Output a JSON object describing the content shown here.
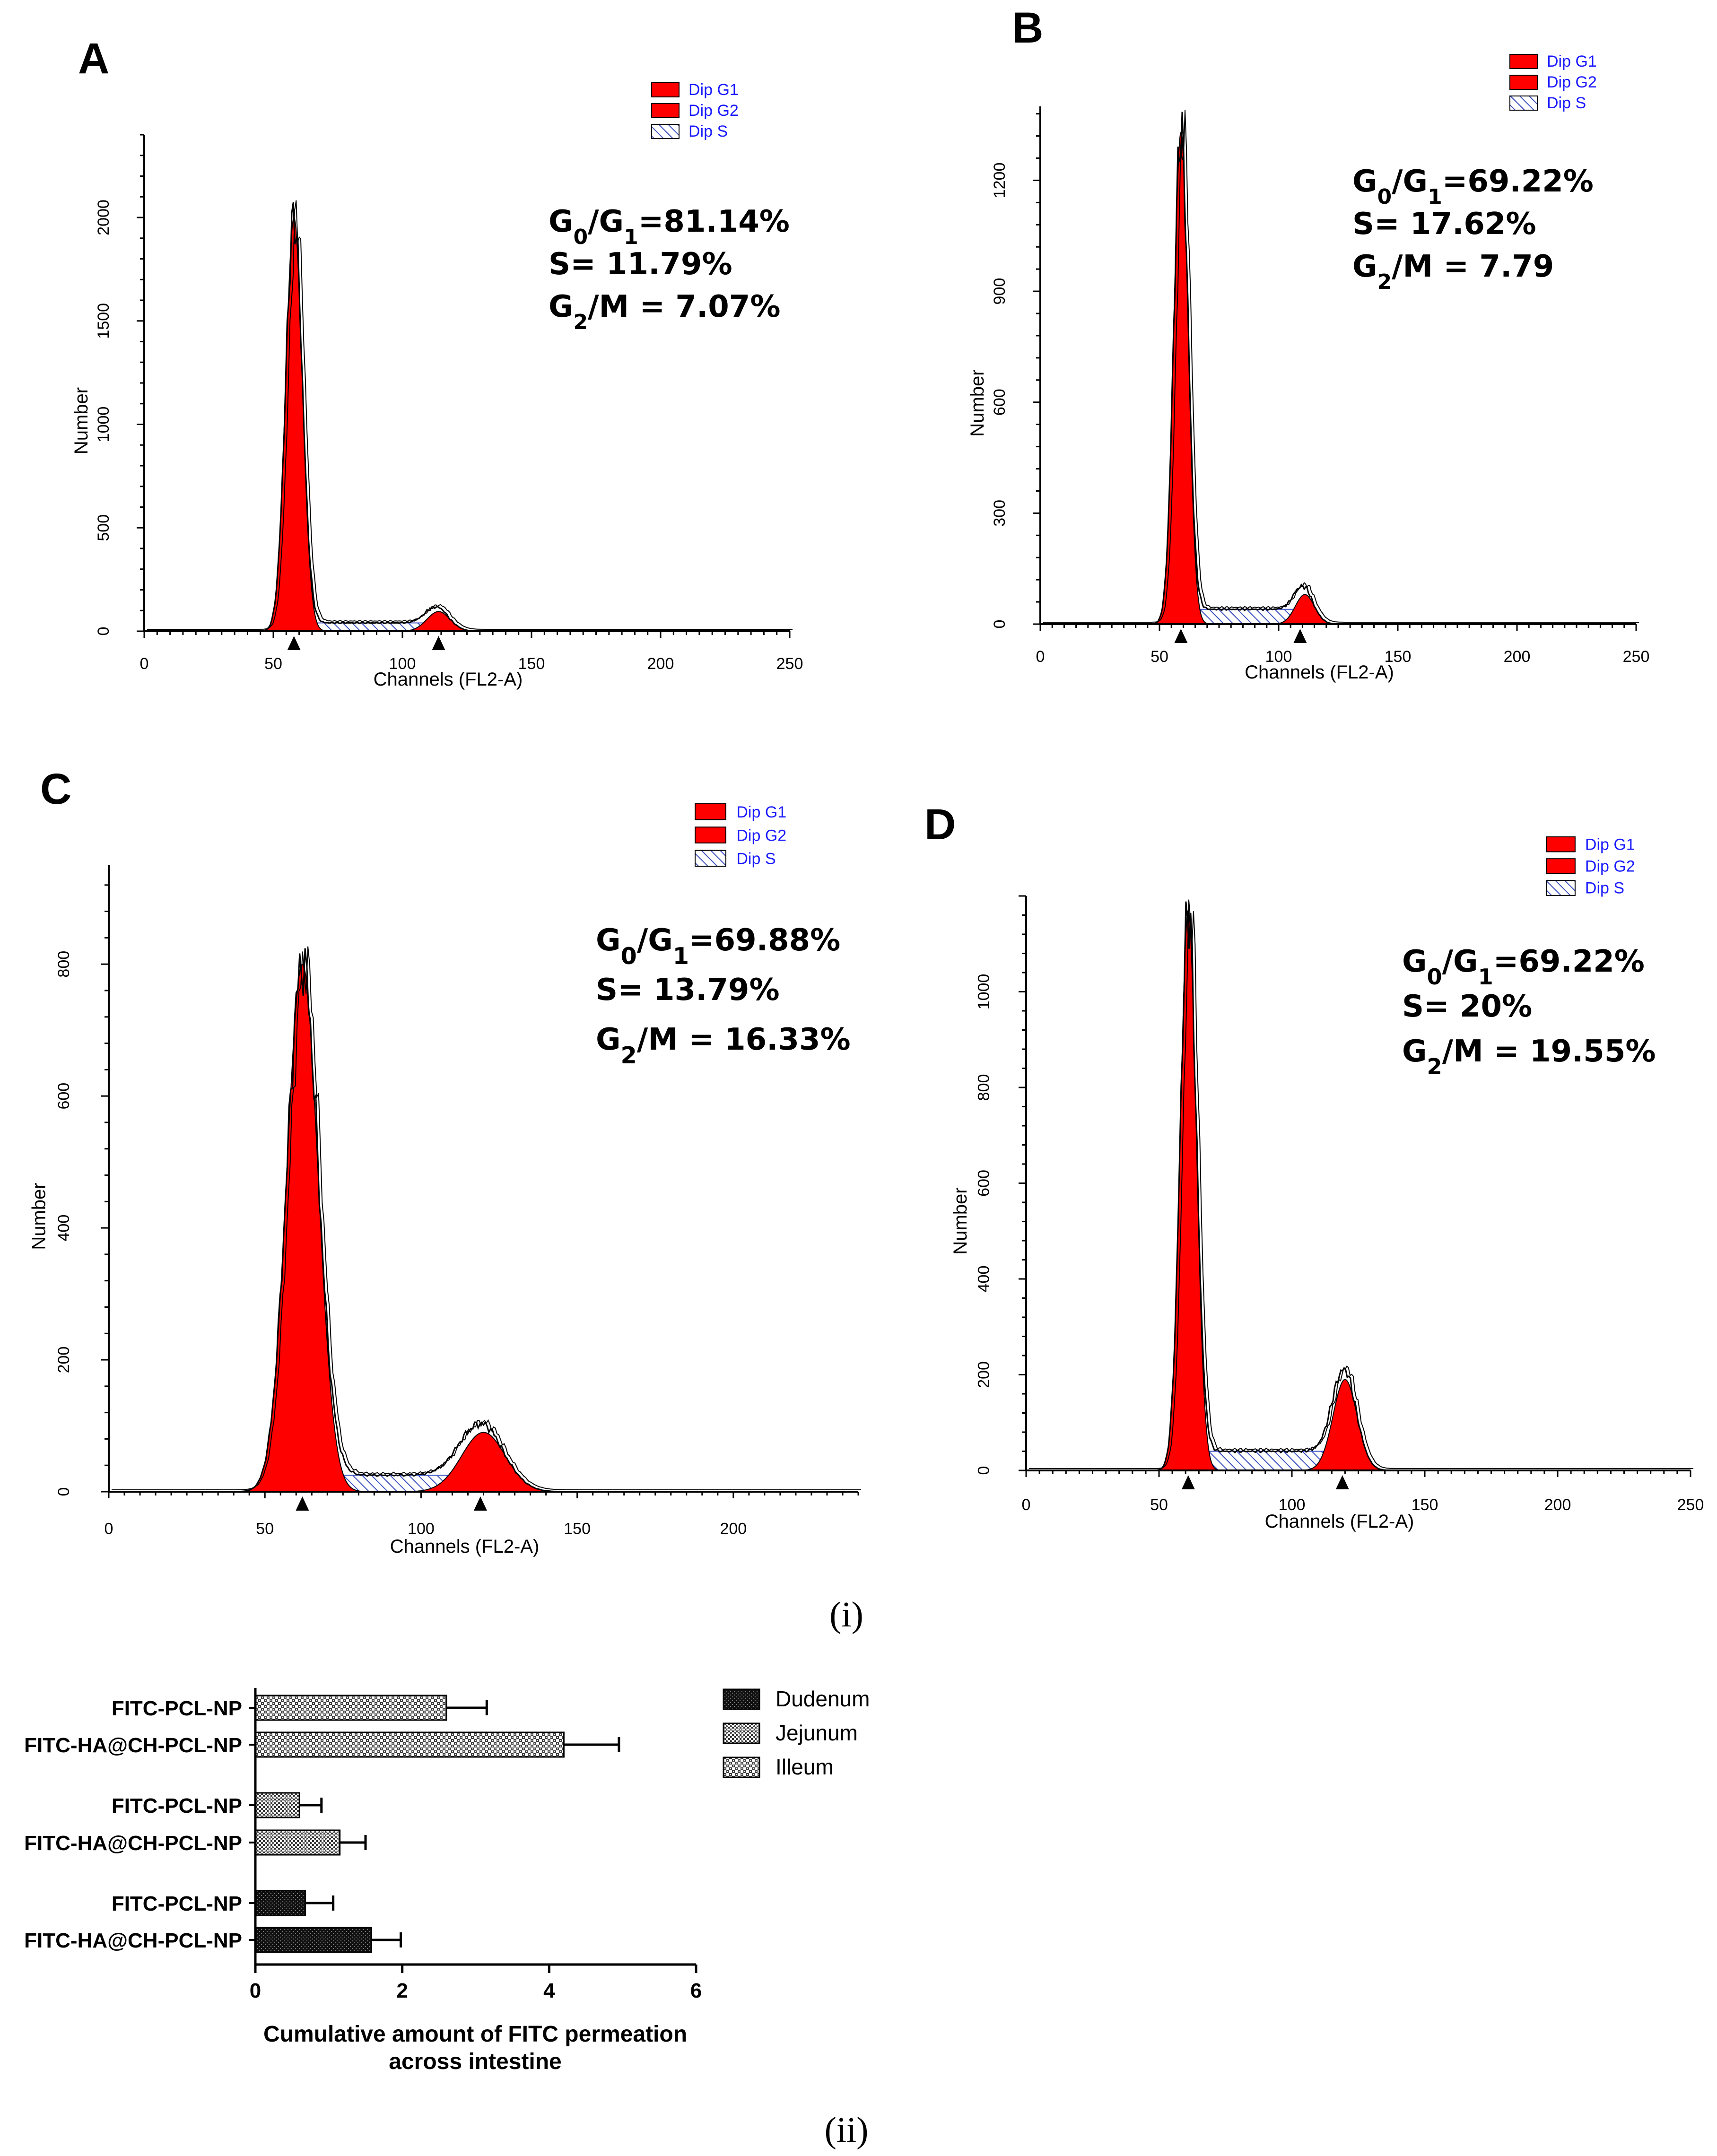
{
  "captions": {
    "i": "(i)",
    "ii": "(ii)"
  },
  "colors": {
    "g1": "#ff0000",
    "g2": "#ff0000",
    "s_hatch": "#3a4fc0",
    "legend_text": "#1a1aff"
  },
  "chart_data": [
    {
      "type": "area",
      "panel": "A",
      "xlabel": "Channels (FL2-A)",
      "ylabel": "Number",
      "xlim": [
        0,
        250
      ],
      "ylim": [
        0,
        2400
      ],
      "xticks": [
        0,
        50,
        100,
        150,
        200,
        250
      ],
      "yticks": [
        0,
        500,
        1000,
        1500,
        2000
      ],
      "legend": [
        "Dip G1",
        "Dip G2",
        "Dip S"
      ],
      "stats": [
        {
          "pre": "G",
          "sub": "0",
          "mid": "/G",
          "sub2": "1",
          "post": "=81.14%"
        },
        {
          "pre": "S= 11.79%"
        },
        {
          "pre": "G",
          "sub": "2",
          "mid": "/M = 7.07%"
        }
      ],
      "peaks": {
        "g1_center": 58,
        "g1_height": 2000,
        "g1_sigma": 3.2,
        "g2_center": 114,
        "g2_height": 95,
        "g2_sigma": 4.5,
        "s_level": 40,
        "markers": [
          58,
          114
        ]
      }
    },
    {
      "type": "area",
      "panel": "B",
      "xlabel": "Channels (FL2-A)",
      "ylabel": "Number",
      "xlim": [
        0,
        250
      ],
      "ylim": [
        0,
        1400
      ],
      "xticks": [
        0,
        50,
        100,
        150,
        200,
        250
      ],
      "yticks": [
        0,
        300,
        600,
        900,
        1200
      ],
      "legend": [
        "Dip G1",
        "Dip G2",
        "Dip S"
      ],
      "stats": [
        {
          "pre": "G",
          "sub": "0",
          "mid": "/G",
          "sub2": "1",
          "post": "=69.22%"
        },
        {
          "pre": "S= 17.62%"
        },
        {
          "pre": "G",
          "sub": "2",
          "mid": "/M = 7.79"
        }
      ],
      "peaks": {
        "g1_center": 59,
        "g1_height": 1330,
        "g1_sigma": 3.0,
        "g2_center": 111,
        "g2_height": 80,
        "g2_sigma": 4.0,
        "s_level": 40,
        "markers": [
          59,
          109
        ]
      }
    },
    {
      "type": "area",
      "panel": "C",
      "xlabel": "Channels (FL2-A)",
      "ylabel": "Number",
      "xlim": [
        0,
        240
      ],
      "ylim": [
        0,
        950
      ],
      "xticks": [
        0,
        50,
        100,
        150,
        200
      ],
      "yticks": [
        0,
        200,
        400,
        600,
        800
      ],
      "legend": [
        "Dip G1",
        "Dip G2",
        "Dip S"
      ],
      "stats": [
        {
          "pre": "G",
          "sub": "0",
          "mid": "/G",
          "sub2": "1",
          "post": "=69.88%"
        },
        {
          "pre": "S= 13.79%"
        },
        {
          "pre": "G",
          "sub": "2",
          "mid": "/M = 16.33%"
        }
      ],
      "peaks": {
        "g1_center": 62,
        "g1_height": 800,
        "g1_sigma": 5.0,
        "g2_center": 120,
        "g2_height": 90,
        "g2_sigma": 7.0,
        "s_level": 25,
        "markers": [
          62,
          119
        ]
      }
    },
    {
      "type": "area",
      "panel": "D",
      "xlabel": "Channels (FL2-A)",
      "ylabel": "Number",
      "xlim": [
        0,
        250
      ],
      "ylim": [
        0,
        1200
      ],
      "xticks": [
        0,
        50,
        100,
        150,
        200,
        250
      ],
      "yticks": [
        0,
        200,
        400,
        600,
        800,
        1000
      ],
      "legend": [
        "Dip G1",
        "Dip G2",
        "Dip S"
      ],
      "stats": [
        {
          "pre": "G",
          "sub": "0",
          "mid": "/G",
          "sub2": "1",
          "post": "=69.22%"
        },
        {
          "pre": "S= 20%"
        },
        {
          "pre": "G",
          "sub": "2",
          "mid": "/M = 19.55%"
        }
      ],
      "peaks": {
        "g1_center": 61,
        "g1_height": 1170,
        "g1_sigma": 3.0,
        "g2_center": 120,
        "g2_height": 190,
        "g2_sigma": 4.5,
        "s_level": 40,
        "markers": [
          61,
          119
        ]
      }
    },
    {
      "type": "bar",
      "orientation": "horizontal",
      "xlabel": "Cumulative amount of FITC permeation across intestine",
      "xlabel_lines": [
        "Cumulative amount of FITC permeation",
        "across intestine"
      ],
      "xlim": [
        0,
        6
      ],
      "xticks": [
        0,
        2,
        4,
        6
      ],
      "legend": [
        "Dudenum",
        "Jejunum",
        "Illeum"
      ],
      "bars": [
        {
          "label": "FITC-PCL-NP",
          "group": "Illeum",
          "value": 2.6,
          "error": 0.55
        },
        {
          "label": "FITC-HA@CH-PCL-NP",
          "group": "Illeum",
          "value": 4.2,
          "error": 0.75
        },
        {
          "label": "FITC-PCL-NP",
          "group": "Jejunum",
          "value": 0.6,
          "error": 0.3
        },
        {
          "label": "FITC-HA@CH-PCL-NP",
          "group": "Jejunum",
          "value": 1.15,
          "error": 0.35
        },
        {
          "label": "FITC-PCL-NP",
          "group": "Dudenum",
          "value": 0.68,
          "error": 0.38
        },
        {
          "label": "FITC-HA@CH-PCL-NP",
          "group": "Dudenum",
          "value": 1.58,
          "error": 0.4
        }
      ]
    }
  ]
}
